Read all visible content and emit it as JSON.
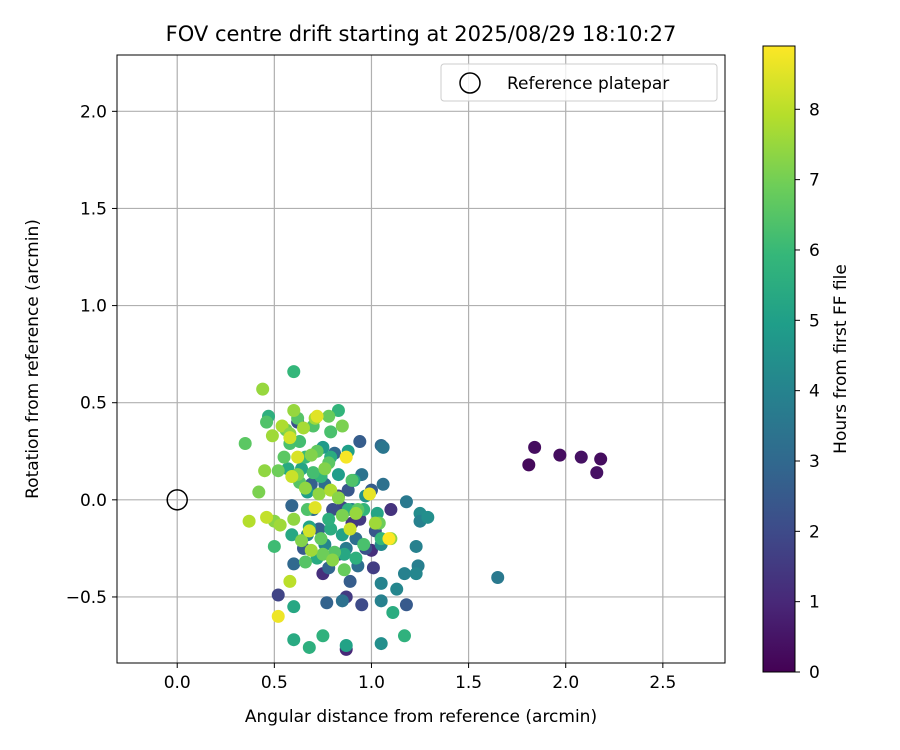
{
  "chart_data": {
    "type": "scatter",
    "title": "FOV centre drift starting at 2025/08/29 18:10:27",
    "xlabel": "Angular distance from reference (arcmin)",
    "ylabel": "Rotation from reference (arcmin)",
    "xlim": [
      -0.31,
      2.82
    ],
    "ylim": [
      -0.84,
      2.29
    ],
    "xticks": [
      0.0,
      0.5,
      1.0,
      1.5,
      2.0,
      2.5
    ],
    "xtick_labels": [
      "0.0",
      "0.5",
      "1.0",
      "1.5",
      "2.0",
      "2.5"
    ],
    "yticks": [
      -0.5,
      0.0,
      0.5,
      1.0,
      1.5,
      2.0
    ],
    "ytick_labels": [
      "−0.5",
      "0.0",
      "0.5",
      "1.0",
      "1.5",
      "2.0"
    ],
    "grid": true,
    "legend": {
      "placement": "top-right",
      "entries": [
        "Reference platepar"
      ]
    },
    "reference_point": {
      "x": 0.0,
      "y": 0.0,
      "label": "Reference platepar"
    },
    "colorbar": {
      "label": "Hours from first FF file",
      "colormap": "viridis",
      "range": [
        0,
        8.9
      ],
      "ticks": [
        0,
        1,
        2,
        3,
        4,
        5,
        6,
        7,
        8
      ],
      "tick_labels": [
        "0",
        "1",
        "2",
        "3",
        "4",
        "5",
        "6",
        "7",
        "8"
      ]
    },
    "points": [
      {
        "x": 1.81,
        "y": 0.18,
        "h": 0.2
      },
      {
        "x": 1.84,
        "y": 0.27,
        "h": 0.3
      },
      {
        "x": 1.97,
        "y": 0.23,
        "h": 0.3
      },
      {
        "x": 2.08,
        "y": 0.22,
        "h": 0.4
      },
      {
        "x": 2.16,
        "y": 0.14,
        "h": 0.4
      },
      {
        "x": 2.18,
        "y": 0.21,
        "h": 0.3
      },
      {
        "x": 1.65,
        "y": -0.4,
        "h": 3.6
      },
      {
        "x": 0.52,
        "y": -0.49,
        "h": 1.8
      },
      {
        "x": 0.75,
        "y": -0.38,
        "h": 1.2
      },
      {
        "x": 0.87,
        "y": -0.77,
        "h": 1.0
      },
      {
        "x": 0.87,
        "y": -0.5,
        "h": 1.5
      },
      {
        "x": 0.95,
        "y": -0.54,
        "h": 2.0
      },
      {
        "x": 0.9,
        "y": -0.12,
        "h": 1.4
      },
      {
        "x": 1.0,
        "y": -0.26,
        "h": 1.2
      },
      {
        "x": 1.01,
        "y": -0.35,
        "h": 1.6
      },
      {
        "x": 1.1,
        "y": -0.05,
        "h": 1.3
      },
      {
        "x": 0.85,
        "y": -0.04,
        "h": 1.9
      },
      {
        "x": 0.83,
        "y": 0.02,
        "h": 1.6
      },
      {
        "x": 0.74,
        "y": 0.12,
        "h": 1.4
      },
      {
        "x": 0.62,
        "y": 0.4,
        "h": 2.2
      },
      {
        "x": 0.89,
        "y": -0.42,
        "h": 2.6
      },
      {
        "x": 0.94,
        "y": -0.1,
        "h": 1.5
      },
      {
        "x": 0.83,
        "y": -0.28,
        "h": 1.9
      },
      {
        "x": 1.18,
        "y": -0.54,
        "h": 2.5
      },
      {
        "x": 0.77,
        "y": -0.53,
        "h": 2.8
      },
      {
        "x": 0.94,
        "y": 0.3,
        "h": 2.6
      },
      {
        "x": 1.05,
        "y": 0.28,
        "h": 3.1
      },
      {
        "x": 0.97,
        "y": -0.25,
        "h": 2.2
      },
      {
        "x": 0.88,
        "y": 0.05,
        "h": 2.4
      },
      {
        "x": 0.8,
        "y": -0.05,
        "h": 2.1
      },
      {
        "x": 0.73,
        "y": -0.15,
        "h": 2.7
      },
      {
        "x": 0.65,
        "y": -0.25,
        "h": 2.5
      },
      {
        "x": 0.59,
        "y": -0.03,
        "h": 2.9
      },
      {
        "x": 0.69,
        "y": 0.08,
        "h": 2.7
      },
      {
        "x": 1.0,
        "y": 0.05,
        "h": 2.6
      },
      {
        "x": 1.06,
        "y": 0.08,
        "h": 3.3
      },
      {
        "x": 0.81,
        "y": 0.24,
        "h": 3.0
      },
      {
        "x": 0.6,
        "y": -0.33,
        "h": 3.0
      },
      {
        "x": 0.78,
        "y": -0.35,
        "h": 2.9
      },
      {
        "x": 0.93,
        "y": -0.34,
        "h": 3.2
      },
      {
        "x": 0.85,
        "y": -0.52,
        "h": 3.3
      },
      {
        "x": 0.92,
        "y": -0.2,
        "h": 3.2
      },
      {
        "x": 1.02,
        "y": -0.16,
        "h": 2.4
      },
      {
        "x": 0.7,
        "y": -0.05,
        "h": 3.1
      },
      {
        "x": 0.76,
        "y": 0.08,
        "h": 3.2
      },
      {
        "x": 1.18,
        "y": -0.01,
        "h": 3.6
      },
      {
        "x": 1.23,
        "y": -0.24,
        "h": 3.9
      },
      {
        "x": 1.24,
        "y": -0.34,
        "h": 3.8
      },
      {
        "x": 1.17,
        "y": -0.38,
        "h": 3.9
      },
      {
        "x": 1.23,
        "y": -0.38,
        "h": 4.1
      },
      {
        "x": 1.05,
        "y": -0.43,
        "h": 4.0
      },
      {
        "x": 1.05,
        "y": -0.52,
        "h": 3.9
      },
      {
        "x": 1.05,
        "y": -0.74,
        "h": 4.4
      },
      {
        "x": 1.13,
        "y": -0.46,
        "h": 4.1
      },
      {
        "x": 1.25,
        "y": -0.07,
        "h": 4.3
      },
      {
        "x": 1.25,
        "y": -0.11,
        "h": 3.9
      },
      {
        "x": 1.29,
        "y": -0.09,
        "h": 4.4
      },
      {
        "x": 1.05,
        "y": -0.23,
        "h": 4.2
      },
      {
        "x": 1.06,
        "y": 0.27,
        "h": 3.5
      },
      {
        "x": 0.9,
        "y": -0.05,
        "h": 3.8
      },
      {
        "x": 0.95,
        "y": 0.13,
        "h": 3.4
      },
      {
        "x": 0.87,
        "y": -0.25,
        "h": 3.7
      },
      {
        "x": 0.76,
        "y": -0.23,
        "h": 4.1
      },
      {
        "x": 0.67,
        "y": -0.18,
        "h": 3.9
      },
      {
        "x": 0.97,
        "y": 0.02,
        "h": 4.5
      },
      {
        "x": 0.6,
        "y": -0.72,
        "h": 5.4
      },
      {
        "x": 0.6,
        "y": -0.55,
        "h": 5.3
      },
      {
        "x": 0.68,
        "y": -0.76,
        "h": 5.6
      },
      {
        "x": 0.75,
        "y": -0.7,
        "h": 5.7
      },
      {
        "x": 0.87,
        "y": -0.75,
        "h": 5.1
      },
      {
        "x": 1.11,
        "y": -0.58,
        "h": 5.5
      },
      {
        "x": 1.17,
        "y": -0.7,
        "h": 5.7
      },
      {
        "x": 0.6,
        "y": 0.66,
        "h": 5.9
      },
      {
        "x": 0.83,
        "y": 0.46,
        "h": 5.8
      },
      {
        "x": 0.79,
        "y": 0.22,
        "h": 5.5
      },
      {
        "x": 0.75,
        "y": 0.27,
        "h": 4.8
      },
      {
        "x": 0.88,
        "y": 0.25,
        "h": 5.0
      },
      {
        "x": 0.83,
        "y": 0.13,
        "h": 4.9
      },
      {
        "x": 0.91,
        "y": 0.1,
        "h": 5.2
      },
      {
        "x": 0.47,
        "y": 0.43,
        "h": 5.6
      },
      {
        "x": 0.57,
        "y": 0.16,
        "h": 5.4
      },
      {
        "x": 0.64,
        "y": 0.16,
        "h": 5.2
      },
      {
        "x": 0.67,
        "y": 0.04,
        "h": 5.0
      },
      {
        "x": 0.59,
        "y": -0.18,
        "h": 5.3
      },
      {
        "x": 0.68,
        "y": -0.14,
        "h": 5.2
      },
      {
        "x": 0.79,
        "y": -0.15,
        "h": 5.5
      },
      {
        "x": 0.85,
        "y": -0.18,
        "h": 5.1
      },
      {
        "x": 0.86,
        "y": -0.28,
        "h": 5.3
      },
      {
        "x": 0.92,
        "y": -0.3,
        "h": 5.6
      },
      {
        "x": 0.96,
        "y": -0.05,
        "h": 5.8
      },
      {
        "x": 1.05,
        "y": -0.2,
        "h": 5.9
      },
      {
        "x": 1.03,
        "y": -0.07,
        "h": 5.2
      },
      {
        "x": 0.78,
        "y": -0.1,
        "h": 5.6
      },
      {
        "x": 0.72,
        "y": -0.3,
        "h": 5.4
      },
      {
        "x": 0.88,
        "y": -0.05,
        "h": 5.7
      },
      {
        "x": 0.74,
        "y": 0.12,
        "h": 5.9
      },
      {
        "x": 0.35,
        "y": 0.29,
        "h": 6.6
      },
      {
        "x": 0.46,
        "y": 0.4,
        "h": 6.4
      },
      {
        "x": 0.5,
        "y": -0.24,
        "h": 6.1
      },
      {
        "x": 0.56,
        "y": 0.36,
        "h": 6.8
      },
      {
        "x": 0.58,
        "y": 0.29,
        "h": 6.3
      },
      {
        "x": 0.62,
        "y": 0.42,
        "h": 6.5
      },
      {
        "x": 0.63,
        "y": 0.3,
        "h": 6.2
      },
      {
        "x": 0.66,
        "y": 0.22,
        "h": 6.0
      },
      {
        "x": 0.7,
        "y": 0.38,
        "h": 6.4
      },
      {
        "x": 0.72,
        "y": 0.25,
        "h": 6.7
      },
      {
        "x": 0.78,
        "y": 0.43,
        "h": 6.8
      },
      {
        "x": 0.79,
        "y": 0.35,
        "h": 6.3
      },
      {
        "x": 0.55,
        "y": 0.22,
        "h": 6.6
      },
      {
        "x": 0.52,
        "y": 0.15,
        "h": 6.9
      },
      {
        "x": 0.63,
        "y": 0.09,
        "h": 6.5
      },
      {
        "x": 0.7,
        "y": 0.14,
        "h": 6.2
      },
      {
        "x": 0.78,
        "y": 0.19,
        "h": 6.6
      },
      {
        "x": 0.67,
        "y": -0.05,
        "h": 6.4
      },
      {
        "x": 0.74,
        "y": -0.2,
        "h": 6.7
      },
      {
        "x": 0.81,
        "y": -0.27,
        "h": 6.5
      },
      {
        "x": 0.86,
        "y": -0.36,
        "h": 6.8
      },
      {
        "x": 0.9,
        "y": 0.1,
        "h": 6.4
      },
      {
        "x": 0.93,
        "y": -0.05,
        "h": 6.6
      },
      {
        "x": 0.96,
        "y": -0.23,
        "h": 6.3
      },
      {
        "x": 1.04,
        "y": -0.12,
        "h": 6.9
      },
      {
        "x": 0.66,
        "y": -0.32,
        "h": 6.5
      },
      {
        "x": 0.75,
        "y": -0.28,
        "h": 6.9
      },
      {
        "x": 0.44,
        "y": 0.57,
        "h": 7.5
      },
      {
        "x": 0.42,
        "y": 0.04,
        "h": 7.1
      },
      {
        "x": 0.45,
        "y": 0.15,
        "h": 7.4
      },
      {
        "x": 0.49,
        "y": 0.33,
        "h": 7.6
      },
      {
        "x": 0.5,
        "y": -0.11,
        "h": 7.3
      },
      {
        "x": 0.53,
        "y": -0.13,
        "h": 7.6
      },
      {
        "x": 0.54,
        "y": 0.38,
        "h": 7.8
      },
      {
        "x": 0.58,
        "y": 0.34,
        "h": 7.3
      },
      {
        "x": 0.6,
        "y": 0.46,
        "h": 7.5
      },
      {
        "x": 0.62,
        "y": 0.13,
        "h": 7.1
      },
      {
        "x": 0.65,
        "y": 0.37,
        "h": 7.7
      },
      {
        "x": 0.66,
        "y": 0.06,
        "h": 7.4
      },
      {
        "x": 0.69,
        "y": 0.23,
        "h": 7.2
      },
      {
        "x": 0.71,
        "y": 0.42,
        "h": 7.6
      },
      {
        "x": 0.73,
        "y": 0.03,
        "h": 7.4
      },
      {
        "x": 0.76,
        "y": 0.16,
        "h": 7.2
      },
      {
        "x": 0.79,
        "y": 0.05,
        "h": 7.8
      },
      {
        "x": 0.83,
        "y": 0.01,
        "h": 7.3
      },
      {
        "x": 0.85,
        "y": 0.38,
        "h": 7.1
      },
      {
        "x": 0.6,
        "y": -0.1,
        "h": 7.4
      },
      {
        "x": 0.64,
        "y": -0.21,
        "h": 7.2
      },
      {
        "x": 0.69,
        "y": -0.26,
        "h": 7.6
      },
      {
        "x": 0.8,
        "y": -0.31,
        "h": 7.3
      },
      {
        "x": 0.85,
        "y": -0.08,
        "h": 7.1
      },
      {
        "x": 0.92,
        "y": -0.07,
        "h": 7.5
      },
      {
        "x": 1.02,
        "y": -0.12,
        "h": 7.6
      },
      {
        "x": 1.1,
        "y": -0.2,
        "h": 7.4
      },
      {
        "x": 0.37,
        "y": -0.11,
        "h": 7.9
      },
      {
        "x": 0.58,
        "y": -0.42,
        "h": 8.0
      },
      {
        "x": 0.59,
        "y": 0.12,
        "h": 8.2
      },
      {
        "x": 0.62,
        "y": 0.22,
        "h": 8.4
      },
      {
        "x": 0.68,
        "y": -0.16,
        "h": 8.3
      },
      {
        "x": 0.72,
        "y": 0.43,
        "h": 8.5
      },
      {
        "x": 0.87,
        "y": 0.22,
        "h": 8.8
      },
      {
        "x": 0.99,
        "y": 0.03,
        "h": 8.6
      },
      {
        "x": 1.09,
        "y": -0.2,
        "h": 8.9
      },
      {
        "x": 0.52,
        "y": -0.6,
        "h": 8.7
      },
      {
        "x": 0.46,
        "y": -0.09,
        "h": 8.1
      },
      {
        "x": 0.58,
        "y": 0.32,
        "h": 8.3
      },
      {
        "x": 0.71,
        "y": -0.04,
        "h": 8.5
      },
      {
        "x": 0.89,
        "y": -0.15,
        "h": 8.2
      }
    ]
  }
}
